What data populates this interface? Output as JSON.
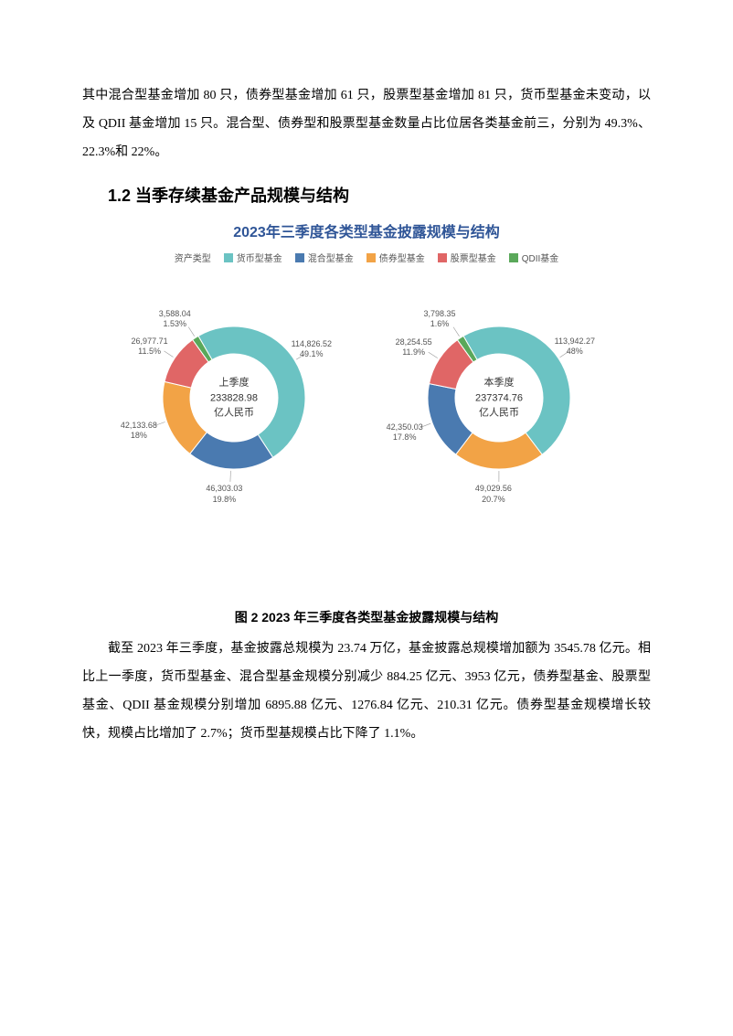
{
  "intro_para": "其中混合型基金增加 80 只，债券型基金增加 61 只，股票型基金增加 81 只，货币型基金未变动，以及 QDII 基金增加 15 只。混合型、债券型和股票型基金数量占比位居各类基金前三，分别为 49.3%、22.3%和 22%。",
  "section_heading": "1.2  当季存续基金产品规模与结构",
  "chart": {
    "title": "2023年三季度各类型基金披露规模与结构",
    "title_color": "#2f5597",
    "title_fontsize": 16,
    "legend_label": "资产类型",
    "categories": [
      {
        "name": "货币型基金",
        "color": "#6bc3c3"
      },
      {
        "name": "混合型基金",
        "color": "#4a7ab0"
      },
      {
        "name": "债券型基金",
        "color": "#f2a346"
      },
      {
        "name": "股票型基金",
        "color": "#e06666"
      },
      {
        "name": "QDII基金",
        "color": "#5aa85a"
      }
    ],
    "donuts": [
      {
        "center_line1": "上季度",
        "center_line2": "233828.98",
        "center_line3": "亿人民币",
        "slices": [
          {
            "value_label": "114,826.52",
            "pct_label": "49.1%",
            "pct": 49.1,
            "color": "#6bc3c3"
          },
          {
            "value_label": "46,303.03",
            "pct_label": "19.8%",
            "pct": 19.8,
            "color": "#4a7ab0"
          },
          {
            "value_label": "42,133.68",
            "pct_label": "18%",
            "pct": 18.0,
            "color": "#f2a346"
          },
          {
            "value_label": "26,977.71",
            "pct_label": "11.5%",
            "pct": 11.5,
            "color": "#e06666"
          },
          {
            "value_label": "3,588.04",
            "pct_label": "1.53%",
            "pct": 1.53,
            "color": "#5aa85a"
          }
        ]
      },
      {
        "center_line1": "本季度",
        "center_line2": "237374.76",
        "center_line3": "亿人民币",
        "slices": [
          {
            "value_label": "113,942.27",
            "pct_label": "48%",
            "pct": 48.0,
            "color": "#6bc3c3"
          },
          {
            "value_label": "49,029.56",
            "pct_label": "20.7%",
            "pct": 20.7,
            "color": "#f2a346"
          },
          {
            "value_label": "42,350.03",
            "pct_label": "17.8%",
            "pct": 17.8,
            "color": "#4a7ab0"
          },
          {
            "value_label": "28,254.55",
            "pct_label": "11.9%",
            "pct": 11.9,
            "color": "#e06666"
          },
          {
            "value_label": "3,798.35",
            "pct_label": "1.6%",
            "pct": 1.6,
            "color": "#5aa85a"
          }
        ]
      }
    ],
    "donut_outer_r": 78,
    "donut_inner_r": 48,
    "start_angle_deg": -30,
    "background_color": "#ffffff",
    "label_fontsize": 9,
    "center_fontsize": 11
  },
  "figure_caption": "图 2   2023 年三季度各类型基金披露规模与结构",
  "body_para": "截至 2023 年三季度，基金披露总规模为 23.74 万亿，基金披露总规模增加额为 3545.78 亿元。相比上一季度，货币型基金、混合型基金规模分别减少 884.25 亿元、3953 亿元，债券型基金、股票型基金、QDII 基金规模分别增加 6895.88 亿元、1276.84 亿元、210.31 亿元。债券型基金规模增长较快，规模占比增加了 2.7%；货币型基规模占比下降了 1.1%。"
}
